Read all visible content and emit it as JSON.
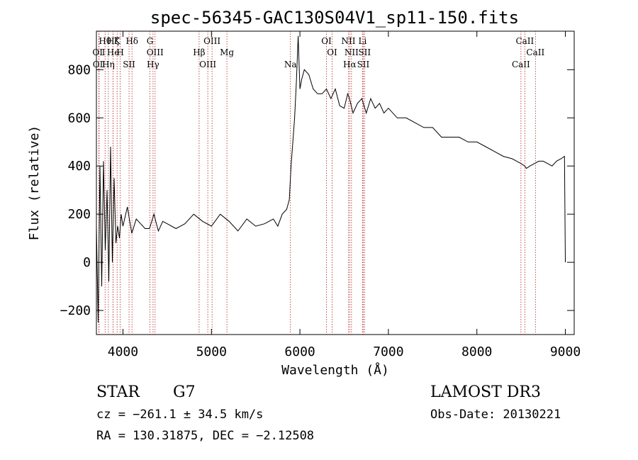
{
  "figure": {
    "title": "spec-56345-GAC130S04V1_sp11-150.fits",
    "class_text": "STAR",
    "subclass_text": "G7",
    "survey_text": "LAMOST DR3",
    "cz_text": "cz = −261.1 ± 34.5 km/s",
    "obsdate_text": "Obs-Date: 20130221",
    "coords_text": "RA = 130.31875, DEC =  −2.12508"
  },
  "chart_data": {
    "type": "line",
    "title": "spec-56345-GAC130S04V1_sp11-150.fits",
    "xlabel": "Wavelength (Å)",
    "ylabel": "Flux (relative)",
    "xlim": [
      3700,
      9100
    ],
    "ylim": [
      -300,
      960
    ],
    "xticks": [
      4000,
      5000,
      6000,
      7000,
      8000,
      9000
    ],
    "yticks": [
      -200,
      0,
      200,
      400,
      600,
      800
    ],
    "xtick_labels": [
      "4000",
      "5000",
      "6000",
      "7000",
      "8000",
      "9000"
    ],
    "ytick_labels": [
      "−200",
      "0",
      "200",
      "400",
      "600",
      "800"
    ],
    "grid": false,
    "series": [
      {
        "x": [
          3700,
          3720,
          3740,
          3760,
          3780,
          3800,
          3820,
          3840,
          3860,
          3880,
          3900,
          3920,
          3940,
          3960,
          3980,
          4000,
          4050,
          4100,
          4150,
          4200,
          4250,
          4300,
          4350,
          4400,
          4450,
          4500,
          4600,
          4700,
          4800,
          4900,
          5000,
          5100,
          5200,
          5300,
          5400,
          5500,
          5600,
          5700,
          5750,
          5800,
          5850,
          5880,
          5900,
          5920,
          5940,
          5960,
          5980,
          6000,
          6020,
          6050,
          6100,
          6150,
          6200,
          6250,
          6300,
          6350,
          6400,
          6450,
          6500,
          6540,
          6560,
          6580,
          6600,
          6650,
          6700,
          6750,
          6800,
          6850,
          6900,
          6950,
          7000,
          7100,
          7200,
          7300,
          7400,
          7500,
          7600,
          7700,
          7800,
          7900,
          8000,
          8100,
          8200,
          8300,
          8400,
          8450,
          8500,
          8540,
          8560,
          8600,
          8650,
          8700,
          8750,
          8800,
          8850,
          8900,
          8950,
          8990,
          9000
        ],
        "y": [
          150,
          -250,
          400,
          -100,
          420,
          50,
          300,
          -80,
          480,
          0,
          350,
          80,
          150,
          100,
          200,
          150,
          230,
          120,
          180,
          160,
          140,
          140,
          200,
          130,
          170,
          160,
          140,
          160,
          200,
          170,
          150,
          200,
          170,
          130,
          180,
          150,
          160,
          180,
          150,
          200,
          220,
          260,
          400,
          500,
          600,
          750,
          940,
          720,
          760,
          800,
          780,
          720,
          700,
          700,
          720,
          680,
          720,
          650,
          640,
          700,
          680,
          650,
          620,
          660,
          680,
          620,
          680,
          640,
          660,
          620,
          640,
          600,
          600,
          580,
          560,
          560,
          520,
          520,
          520,
          500,
          500,
          480,
          460,
          440,
          430,
          420,
          410,
          400,
          390,
          400,
          410,
          420,
          420,
          410,
          400,
          420,
          430,
          440,
          0
        ]
      }
    ],
    "line_markers": [
      {
        "label": "Hθ",
        "x": 3798
      },
      {
        "label": "OⅡ",
        "x": 3727
      },
      {
        "label": "OⅡ",
        "x": 3730
      },
      {
        "label": "K",
        "x": 3934
      },
      {
        "label": "He",
        "x": 3889
      },
      {
        "label": "Hη",
        "x": 3835
      },
      {
        "label": "Hζ",
        "x": 3889
      },
      {
        "label": "H",
        "x": 3969
      },
      {
        "label": "SII",
        "x": 4069
      },
      {
        "label": "Hδ",
        "x": 4102
      },
      {
        "label": "OIII",
        "x": 4363
      },
      {
        "label": "Hγ",
        "x": 4340
      },
      {
        "label": "G",
        "x": 4305
      },
      {
        "label": "Hβ",
        "x": 4861
      },
      {
        "label": "OIII",
        "x": 4959
      },
      {
        "label": "OIII",
        "x": 5007
      },
      {
        "label": "Mg",
        "x": 5175
      },
      {
        "label": "Na",
        "x": 5893
      },
      {
        "label": "OI",
        "x": 6300
      },
      {
        "label": "OI",
        "x": 6364
      },
      {
        "label": "Hα",
        "x": 6563
      },
      {
        "label": "NII",
        "x": 6548
      },
      {
        "label": "NII",
        "x": 6583
      },
      {
        "label": "SII",
        "x": 6716
      },
      {
        "label": "Li",
        "x": 6708
      },
      {
        "label": "SII",
        "x": 6731
      },
      {
        "label": "CaII",
        "x": 8498
      },
      {
        "label": "CaII",
        "x": 8542
      },
      {
        "label": "CaII",
        "x": 8662
      }
    ],
    "line_marker_color": "#b22222",
    "flux_color": "#000000"
  }
}
